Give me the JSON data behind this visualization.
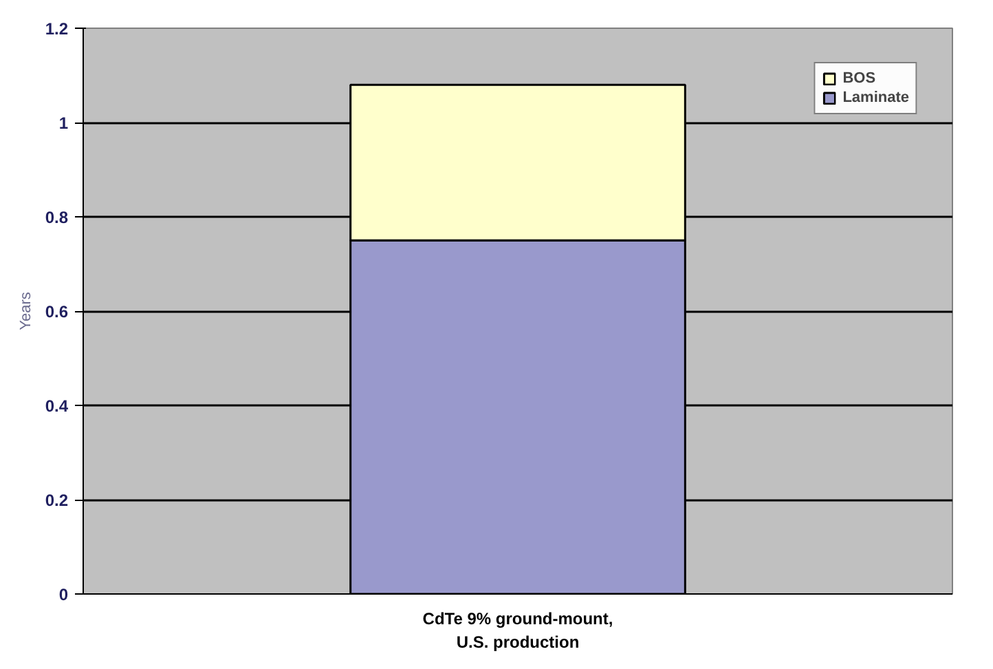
{
  "chart_data": {
    "type": "bar",
    "stacked": true,
    "ylabel": "Years",
    "categories": [
      "CdTe 9% ground-mount, U.S. production"
    ],
    "series": [
      {
        "name": "Laminate",
        "color": "#9999cc",
        "values": [
          0.75
        ]
      },
      {
        "name": "BOS",
        "color": "#ffffcc",
        "values": [
          0.33
        ]
      }
    ],
    "ylim": [
      0,
      1.2
    ],
    "yticks": [
      0,
      0.2,
      0.4,
      0.6,
      0.8,
      1,
      1.2
    ],
    "grid": "y",
    "legend": "top right"
  }
}
